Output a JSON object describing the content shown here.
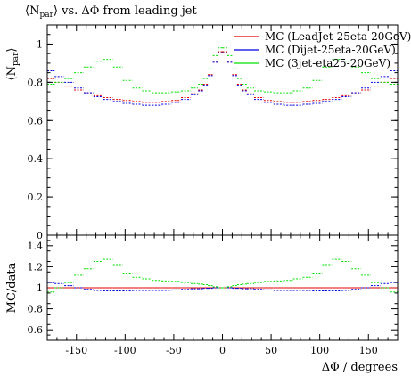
{
  "chart_data": [
    {
      "type": "line",
      "title_main": "⟨N",
      "title_sub": "par",
      "title_rest": "⟩ vs. ΔΦ from leading jet",
      "ylabel_main": "⟨N",
      "ylabel_sub": "par",
      "ylabel_rest": "⟩",
      "xlim": [
        -180,
        180
      ],
      "ylim": [
        0,
        1.1
      ],
      "y_ticks": [
        "0",
        "0.2",
        "0.4",
        "0.6",
        "0.8",
        "1"
      ],
      "y_tick_values": [
        0,
        0.2,
        0.4,
        0.6,
        0.8,
        1.0
      ],
      "legend_position": "top-right",
      "x": [
        -177.5,
        -167.5,
        -157.5,
        -147.5,
        -137.5,
        -127.5,
        -117.5,
        -107.5,
        -97.5,
        -87.5,
        -77.5,
        -67.5,
        -57.5,
        -47.5,
        -37.5,
        -27.5,
        -22.5,
        -17.5,
        -12.5,
        -7.5,
        -2.5,
        2.5,
        7.5,
        12.5,
        17.5,
        22.5,
        27.5,
        37.5,
        47.5,
        57.5,
        67.5,
        77.5,
        87.5,
        97.5,
        107.5,
        117.5,
        127.5,
        137.5,
        147.5,
        157.5,
        167.5,
        177.5
      ],
      "series": [
        {
          "name": "MC (LeadJet-25eta-20GeV)",
          "color": "#e00000",
          "values": [
            0.82,
            0.8,
            0.78,
            0.76,
            0.745,
            0.73,
            0.72,
            0.71,
            0.705,
            0.7,
            0.695,
            0.695,
            0.7,
            0.705,
            0.72,
            0.74,
            0.76,
            0.79,
            0.84,
            0.91,
            0.96,
            0.96,
            0.91,
            0.84,
            0.79,
            0.76,
            0.74,
            0.72,
            0.705,
            0.7,
            0.695,
            0.695,
            0.7,
            0.705,
            0.71,
            0.72,
            0.73,
            0.745,
            0.76,
            0.78,
            0.8,
            0.82
          ]
        },
        {
          "name": "MC (Dijet-25eta-20GeV)",
          "color": "#0000e0",
          "values": [
            0.86,
            0.83,
            0.8,
            0.77,
            0.745,
            0.725,
            0.71,
            0.7,
            0.69,
            0.685,
            0.68,
            0.68,
            0.685,
            0.695,
            0.71,
            0.735,
            0.755,
            0.785,
            0.835,
            0.905,
            0.955,
            0.955,
            0.905,
            0.835,
            0.785,
            0.755,
            0.735,
            0.71,
            0.695,
            0.685,
            0.68,
            0.68,
            0.685,
            0.69,
            0.7,
            0.71,
            0.725,
            0.745,
            0.77,
            0.8,
            0.83,
            0.86
          ]
        },
        {
          "name": "MC (3jet-eta25-20GeV)",
          "color": "#00e000",
          "values": [
            0.79,
            0.8,
            0.82,
            0.85,
            0.88,
            0.91,
            0.92,
            0.88,
            0.81,
            0.77,
            0.755,
            0.745,
            0.745,
            0.75,
            0.755,
            0.77,
            0.79,
            0.82,
            0.87,
            0.94,
            0.98,
            0.98,
            0.94,
            0.87,
            0.82,
            0.79,
            0.77,
            0.755,
            0.75,
            0.745,
            0.745,
            0.755,
            0.77,
            0.81,
            0.88,
            0.92,
            0.91,
            0.88,
            0.85,
            0.82,
            0.8,
            0.79
          ]
        }
      ]
    },
    {
      "type": "line",
      "ylabel": "MC/data",
      "xlabel": "ΔΦ / degrees",
      "xlim": [
        -180,
        180
      ],
      "ylim": [
        0.5,
        1.5
      ],
      "x_ticks": [
        "-150",
        "-100",
        "-50",
        "0",
        "50",
        "100",
        "150"
      ],
      "x_tick_values": [
        -150,
        -100,
        -50,
        0,
        50,
        100,
        150
      ],
      "y_ticks": [
        "0.6",
        "0.8",
        "1",
        "1.2",
        "1.4"
      ],
      "y_tick_values": [
        0.6,
        0.8,
        1.0,
        1.2,
        1.4
      ],
      "x": [
        -177.5,
        -167.5,
        -157.5,
        -147.5,
        -137.5,
        -127.5,
        -117.5,
        -107.5,
        -97.5,
        -87.5,
        -77.5,
        -67.5,
        -57.5,
        -47.5,
        -37.5,
        -27.5,
        -22.5,
        -17.5,
        -12.5,
        -7.5,
        -2.5,
        2.5,
        7.5,
        12.5,
        17.5,
        22.5,
        27.5,
        37.5,
        47.5,
        57.5,
        67.5,
        77.5,
        87.5,
        97.5,
        107.5,
        117.5,
        127.5,
        137.5,
        147.5,
        157.5,
        167.5,
        177.5
      ],
      "series": [
        {
          "name": "MC (LeadJet-25eta-20GeV)",
          "color": "#e00000",
          "values": [
            1.0,
            1.0,
            1.0,
            1.0,
            1.0,
            1.0,
            1.0,
            1.0,
            1.0,
            1.0,
            1.0,
            1.0,
            1.0,
            1.0,
            1.0,
            1.0,
            1.0,
            1.0,
            1.0,
            1.0,
            1.0,
            1.0,
            1.0,
            1.0,
            1.0,
            1.0,
            1.0,
            1.0,
            1.0,
            1.0,
            1.0,
            1.0,
            1.0,
            1.0,
            1.0,
            1.0,
            1.0,
            1.0,
            1.0,
            1.0,
            1.0,
            1.0
          ]
        },
        {
          "name": "MC (Dijet-25eta-20GeV)",
          "color": "#0000e0",
          "values": [
            1.05,
            1.04,
            1.02,
            1.0,
            0.985,
            0.975,
            0.97,
            0.97,
            0.97,
            0.975,
            0.975,
            0.975,
            0.975,
            0.98,
            0.985,
            0.99,
            0.99,
            0.995,
            0.995,
            1.0,
            1.0,
            1.0,
            1.0,
            0.995,
            0.995,
            0.99,
            0.99,
            0.985,
            0.98,
            0.975,
            0.975,
            0.975,
            0.975,
            0.97,
            0.97,
            0.97,
            0.975,
            0.985,
            1.0,
            1.02,
            1.04,
            1.05
          ]
        },
        {
          "name": "MC (3jet-eta25-20GeV)",
          "color": "#00e000",
          "values": [
            0.96,
            1.0,
            1.05,
            1.12,
            1.18,
            1.25,
            1.27,
            1.22,
            1.14,
            1.1,
            1.085,
            1.07,
            1.065,
            1.06,
            1.05,
            1.04,
            1.035,
            1.03,
            1.02,
            1.01,
            1.0,
            1.0,
            1.01,
            1.02,
            1.03,
            1.035,
            1.04,
            1.05,
            1.06,
            1.065,
            1.07,
            1.085,
            1.1,
            1.14,
            1.22,
            1.27,
            1.25,
            1.18,
            1.12,
            1.05,
            1.0,
            0.96
          ]
        }
      ]
    }
  ]
}
